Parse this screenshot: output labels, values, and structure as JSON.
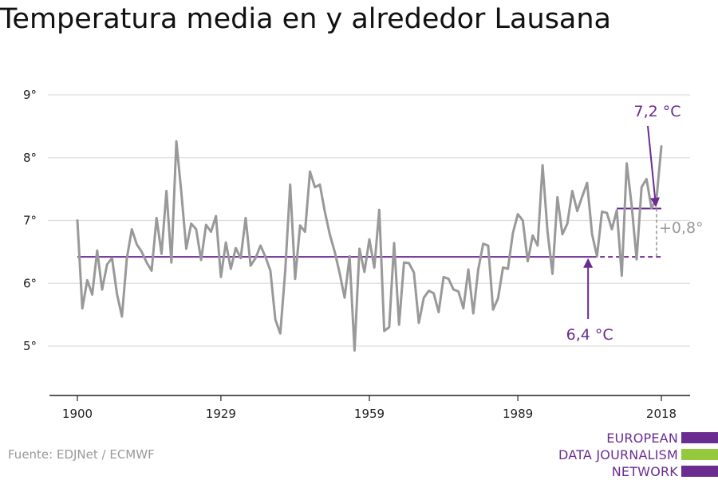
{
  "title": "Temperatura media en y alrededor Lausana",
  "source": "Fuente: EDJNet / ECMWF",
  "logo": {
    "lines": [
      "EUROPEAN",
      "DATA JOURNALISM",
      "NETWORK"
    ],
    "colors": [
      "#6a2c91",
      "#95c93d",
      "#6a2c91"
    ]
  },
  "chart_data": {
    "type": "line",
    "title": "Temperatura media en y alrededor Lausana",
    "xlabel": "",
    "ylabel": "",
    "xlim": [
      1900,
      2018
    ],
    "ylim": [
      4.2,
      9.2
    ],
    "x_ticks": [
      1900,
      1929,
      1959,
      1989,
      2018
    ],
    "y_ticks": [
      {
        "value": 5,
        "label": "5°"
      },
      {
        "value": 6,
        "label": "6°"
      },
      {
        "value": 7,
        "label": "7°"
      },
      {
        "value": 8,
        "label": "8°"
      },
      {
        "value": 9,
        "label": "9°"
      }
    ],
    "grid": "horizontal",
    "line_color": "#999999",
    "series": [
      {
        "x": [
          1900,
          1901,
          1902,
          1903,
          1904,
          1905,
          1906,
          1907,
          1908,
          1909,
          1910,
          1911,
          1912,
          1913,
          1914,
          1915,
          1916,
          1917,
          1918,
          1919,
          1920,
          1921,
          1922,
          1923,
          1924,
          1925,
          1926,
          1927,
          1928,
          1929,
          1930,
          1931,
          1932,
          1933,
          1934,
          1935,
          1936,
          1937,
          1938,
          1939,
          1940,
          1941,
          1942,
          1943,
          1944,
          1945,
          1946,
          1947,
          1948,
          1949,
          1950,
          1951,
          1952,
          1953,
          1954,
          1955,
          1956,
          1957,
          1958,
          1959,
          1960,
          1961,
          1962,
          1963,
          1964,
          1965,
          1966,
          1967,
          1968,
          1969,
          1970,
          1971,
          1972,
          1973,
          1974,
          1975,
          1976,
          1977,
          1978,
          1979,
          1980,
          1981,
          1982,
          1983,
          1984,
          1985,
          1986,
          1987,
          1988,
          1989,
          1990,
          1991,
          1992,
          1993,
          1994,
          1995,
          1996,
          1997,
          1998,
          1999,
          2000,
          2001,
          2002,
          2003,
          2004,
          2005,
          2006,
          2007,
          2008,
          2009,
          2010,
          2011,
          2012,
          2013,
          2014,
          2015,
          2016,
          2017,
          2018
        ],
        "values": [
          7.0,
          5.6,
          6.05,
          5.82,
          6.52,
          5.9,
          6.3,
          6.4,
          5.83,
          5.47,
          6.4,
          6.86,
          6.62,
          6.5,
          6.33,
          6.2,
          7.04,
          6.47,
          7.47,
          6.33,
          8.26,
          7.45,
          6.55,
          6.95,
          6.86,
          6.37,
          6.93,
          6.82,
          7.07,
          6.1,
          6.65,
          6.23,
          6.56,
          6.4,
          7.04,
          6.28,
          6.4,
          6.6,
          6.42,
          6.2,
          5.42,
          5.2,
          6.2,
          7.57,
          6.07,
          6.92,
          6.82,
          7.78,
          7.53,
          7.57,
          7.14,
          6.78,
          6.5,
          6.16,
          5.77,
          6.43,
          4.93,
          6.55,
          6.18,
          6.7,
          6.25,
          7.17,
          5.24,
          5.3,
          6.64,
          5.34,
          6.33,
          6.32,
          6.17,
          5.37,
          5.77,
          5.88,
          5.84,
          5.54,
          6.1,
          6.07,
          5.9,
          5.87,
          5.6,
          6.22,
          5.52,
          6.22,
          6.63,
          6.6,
          5.58,
          5.76,
          6.25,
          6.23,
          6.8,
          7.1,
          7.0,
          6.35,
          6.76,
          6.6,
          7.88,
          6.82,
          6.15,
          7.37,
          6.78,
          6.95,
          7.47,
          7.15,
          7.38,
          7.6,
          6.78,
          6.43,
          7.14,
          7.12,
          6.86,
          7.16,
          6.12,
          7.91,
          7.24,
          6.38,
          7.53,
          7.66,
          7.2,
          7.33,
          8.18
        ]
      }
    ],
    "references": [
      {
        "label": "6,4 °C",
        "value": 6.42,
        "from": 1900,
        "to": 2018,
        "dashed_from": 2004,
        "color": "#6a2c91"
      },
      {
        "label": "7,2 °C",
        "value": 7.19,
        "from": 2009,
        "to": 2018,
        "color": "#6a2c91"
      }
    ],
    "difference": {
      "label": "+0,8°",
      "color": "#999999"
    }
  }
}
